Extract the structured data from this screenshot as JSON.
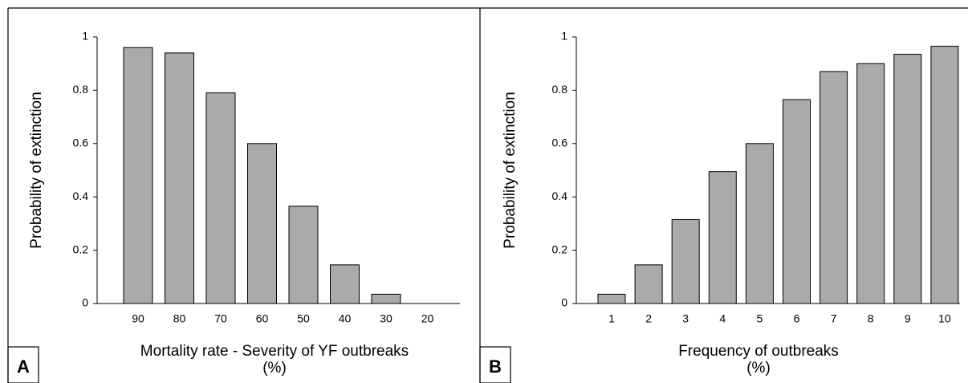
{
  "chart_data": [
    {
      "type": "bar",
      "panel": "A",
      "ylabel": "Probability of extinction",
      "xlabel": [
        "Mortality rate - Severity of YF outbreaks",
        "(%)"
      ],
      "categories": [
        "90",
        "80",
        "70",
        "60",
        "50",
        "40",
        "30",
        "20"
      ],
      "values": [
        0.96,
        0.94,
        0.79,
        0.6,
        0.365,
        0.145,
        0.035,
        0
      ],
      "color": "#aaaaaa",
      "ylim": [
        0,
        1
      ],
      "yticks": [
        0,
        0.2,
        0.4,
        0.6,
        0.8,
        1
      ]
    },
    {
      "type": "bar",
      "panel": "B",
      "ylabel": "Probability of extinction",
      "xlabel": [
        "Frequency of outbreaks",
        "(%)"
      ],
      "categories": [
        "1",
        "2",
        "3",
        "4",
        "5",
        "6",
        "7",
        "8",
        "9",
        "10"
      ],
      "values": [
        0.035,
        0.145,
        0.315,
        0.495,
        0.6,
        0.765,
        0.87,
        0.9,
        0.935,
        0.965
      ],
      "color": "#aaaaaa",
      "ylim": [
        0,
        1
      ],
      "yticks": [
        0,
        0.2,
        0.4,
        0.6,
        0.8,
        1
      ]
    }
  ]
}
